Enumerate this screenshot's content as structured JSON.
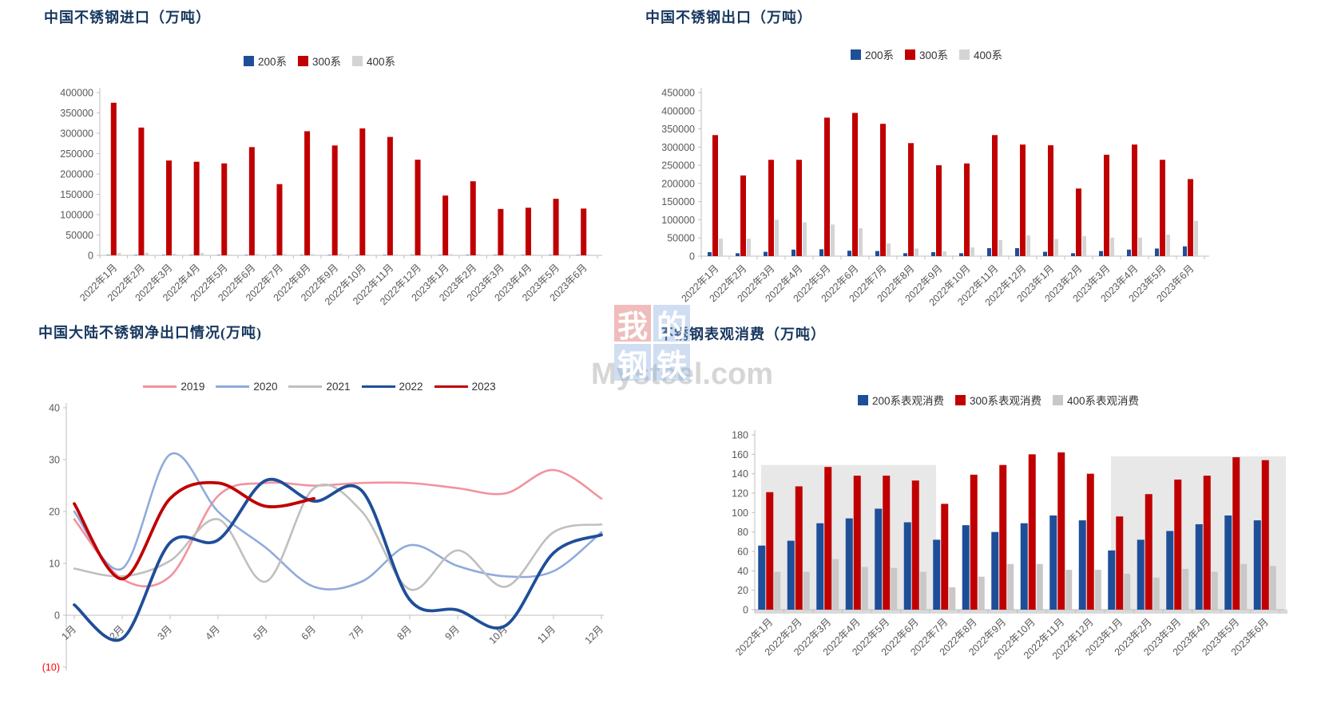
{
  "page": {
    "background": "#FFFFFF"
  },
  "watermark": {
    "tiles": [
      "我",
      "的",
      "钢",
      "铁"
    ],
    "tile_colors": [
      "#DD6A6A",
      "#8FB0DF",
      "#8FB0DF",
      "#8FB0DF"
    ],
    "brand": "Mysteel.com"
  },
  "colors": {
    "series_blue": "#1F4E99",
    "series_red": "#C00000",
    "series_gray": "#D5D3D3",
    "line_2019": "#F2929E",
    "line_2020": "#8FAADC",
    "line_2021": "#BFBFBF",
    "line_2022": "#1F4E99",
    "line_2023": "#C00000",
    "plot_band": "#E8E8E8",
    "axis": "#BFBFBF",
    "tick_text": "#595959",
    "title_text": "#17375E",
    "negative_tick": "#FF0000"
  },
  "chart_data": [
    {
      "id": "imports",
      "type": "bar",
      "title": "中国不锈钢进口（万吨）",
      "legend_position": "top",
      "grid": false,
      "ylim": [
        0,
        400000
      ],
      "ytick_step": 50000,
      "categories": [
        "2022年1月",
        "2022年2月",
        "2022年3月",
        "2022年4月",
        "2022年5月",
        "2022年6月",
        "2022年7月",
        "2022年8月",
        "2022年9月",
        "2022年10月",
        "2022年11月",
        "2022年12月",
        "2023年1月",
        "2023年2月",
        "2023年3月",
        "2023年4月",
        "2023年5月",
        "2023年6月"
      ],
      "series": [
        {
          "name": "200系",
          "color": "#1F4E99",
          "values": [
            1000,
            1000,
            1000,
            1000,
            1000,
            1000,
            1000,
            1000,
            1000,
            1000,
            1000,
            1000,
            1000,
            1000,
            1000,
            1000,
            1000,
            1000
          ]
        },
        {
          "name": "300系",
          "color": "#C00000",
          "values": [
            375000,
            314000,
            233000,
            230000,
            226000,
            266000,
            175000,
            305000,
            270000,
            312000,
            291000,
            235000,
            147000,
            182000,
            114000,
            117000,
            139000,
            115000
          ]
        },
        {
          "name": "400系",
          "color": "#D5D3D3",
          "values": [
            6000,
            6000,
            4000,
            6000,
            2000,
            3000,
            3000,
            3000,
            4000,
            2000,
            2000,
            2000,
            3000,
            3000,
            3000,
            2000,
            2500,
            2000
          ]
        }
      ]
    },
    {
      "id": "exports",
      "type": "bar",
      "title": "中国不锈钢出口（万吨）",
      "legend_position": "top",
      "grid": false,
      "ylim": [
        0,
        450000
      ],
      "ytick_step": 50000,
      "categories": [
        "2022年1月",
        "2022年2月",
        "2022年3月",
        "2022年4月",
        "2022年5月",
        "2022年6月",
        "2022年7月",
        "2022年8月",
        "2022年9月",
        "2022年10月",
        "2022年11月",
        "2022年12月",
        "2023年1月",
        "2023年2月",
        "2023年3月",
        "2023年4月",
        "2023年5月",
        "2023年6月"
      ],
      "series": [
        {
          "name": "200系",
          "color": "#1F4E99",
          "values": [
            11000,
            8000,
            12000,
            18000,
            19000,
            15000,
            14000,
            8000,
            11000,
            8000,
            22000,
            22000,
            12000,
            8000,
            14000,
            18000,
            21000,
            27000
          ]
        },
        {
          "name": "300系",
          "color": "#C00000",
          "values": [
            333000,
            222000,
            265000,
            265000,
            381000,
            394000,
            364000,
            311000,
            250000,
            255000,
            333000,
            307000,
            305000,
            186000,
            279000,
            307000,
            265000,
            212000
          ]
        },
        {
          "name": "400系",
          "color": "#D5D3D3",
          "values": [
            48000,
            48000,
            100000,
            93000,
            87000,
            77000,
            35000,
            21000,
            13000,
            24000,
            44000,
            57000,
            47000,
            55000,
            51000,
            51000,
            59000,
            97000
          ]
        }
      ]
    },
    {
      "id": "net-exports",
      "type": "line",
      "title": "中国大陆不锈钢净出口情况(万吨)",
      "legend_position": "top",
      "grid": false,
      "ylim": [
        -10,
        40
      ],
      "ytick_step": 10,
      "negative_tick_label": "(10)",
      "x": [
        "1月",
        "2月",
        "3月",
        "4月",
        "5月",
        "6月",
        "7月",
        "8月",
        "9月",
        "10月",
        "11月",
        "12月"
      ],
      "series": [
        {
          "name": "2019",
          "color": "#F2929E",
          "line_width": 2.6,
          "values": [
            18.5,
            7,
            7.5,
            23,
            25.5,
            25,
            25.5,
            25.5,
            24.5,
            23.5,
            28,
            22.5
          ]
        },
        {
          "name": "2020",
          "color": "#8FAADC",
          "line_width": 2.6,
          "values": [
            20,
            9,
            31,
            20,
            13,
            5.5,
            6.5,
            13.5,
            9.5,
            7.5,
            8.5,
            16
          ]
        },
        {
          "name": "2021",
          "color": "#BFBFBF",
          "line_width": 2.6,
          "values": [
            9,
            7.5,
            10.5,
            18.5,
            6.5,
            24.5,
            20,
            5,
            12.5,
            5.5,
            16,
            17.5
          ]
        },
        {
          "name": "2022",
          "color": "#1F4E99",
          "line_width": 3.8,
          "values": [
            2,
            -4.5,
            14,
            14.5,
            26,
            22,
            24,
            3,
            1,
            -2,
            12,
            15.5
          ]
        },
        {
          "name": "2023",
          "color": "#C00000",
          "line_width": 3.8,
          "values": [
            21.5,
            7,
            22.5,
            25.5,
            21,
            22.5
          ]
        }
      ]
    },
    {
      "id": "apparent-consumption",
      "type": "bar",
      "title": "不锈钢表观消费（万吨）",
      "legend_position": "top",
      "grid": false,
      "ylim": [
        0,
        180
      ],
      "ytick_step": 20,
      "plot_bands": [
        {
          "from_index": 0,
          "to_index": 5,
          "top": 149,
          "color": "#E8E8E8"
        },
        {
          "from_index": 12,
          "to_index": 17,
          "top": 158,
          "color": "#E8E8E8"
        }
      ],
      "categories": [
        "2022年1月",
        "2022年2月",
        "2022年3月",
        "2022年4月",
        "2022年5月",
        "2022年6月",
        "2022年7月",
        "2022年8月",
        "2022年9月",
        "2022年10月",
        "2022年11月",
        "2022年12月",
        "2023年1月",
        "2023年2月",
        "2023年3月",
        "2023年4月",
        "2023年5月",
        "2023年6月"
      ],
      "series": [
        {
          "name": "200系表观消费",
          "color": "#1F4E99",
          "values": [
            66,
            71,
            89,
            94,
            104,
            90,
            72,
            87,
            80,
            89,
            97,
            92,
            61,
            72,
            81,
            88,
            97,
            92
          ]
        },
        {
          "name": "300系表观消费",
          "color": "#C00000",
          "values": [
            121,
            127,
            147,
            138,
            138,
            133,
            109,
            139,
            149,
            160,
            162,
            140,
            96,
            119,
            134,
            138,
            157,
            154
          ]
        },
        {
          "name": "400系表观消费",
          "color": "#C9C7C7",
          "values": [
            39,
            39,
            52,
            44,
            43,
            39,
            23,
            34,
            47,
            47,
            41,
            41,
            37,
            33,
            42,
            39,
            47,
            45
          ]
        }
      ]
    }
  ]
}
